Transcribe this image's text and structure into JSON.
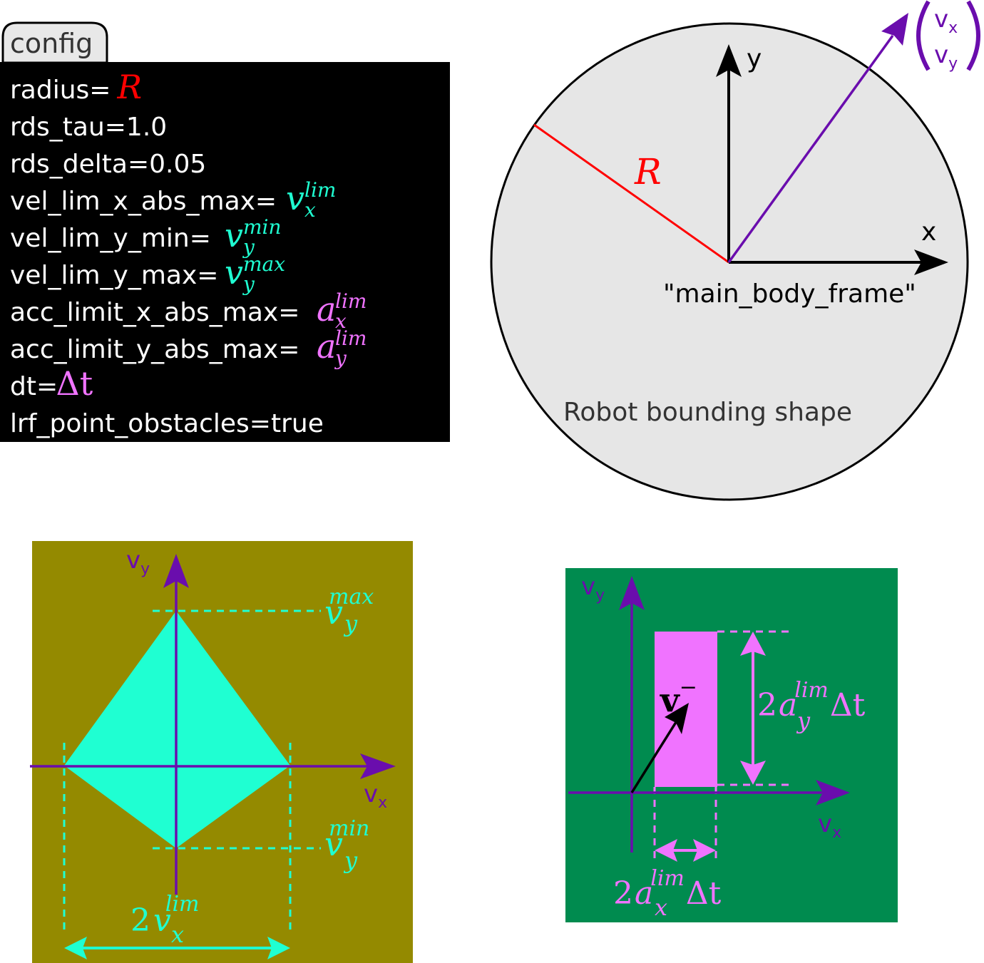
{
  "colors": {
    "config_bg": "#000000",
    "config_text": "#ffffff",
    "radius_red": "#ff0000",
    "cyan": "#1de9b6",
    "cyan_fill": "#1fffd2",
    "magenta": "#f073ff",
    "purple": "#6a0dad",
    "olive_bg": "#948a00",
    "green_bg": "#008b4f",
    "circle_fill": "#e6e6e6"
  },
  "config": {
    "tab_label": "config",
    "lines": [
      {
        "key": "radius=",
        "sym": "R",
        "sub": "",
        "sup": "",
        "color": "red"
      },
      {
        "key": "rds_tau=1.0",
        "sym": "",
        "sub": "",
        "sup": "",
        "color": ""
      },
      {
        "key": "rds_delta=0.05",
        "sym": "",
        "sub": "",
        "sup": "",
        "color": ""
      },
      {
        "key": "vel_lim_x_abs_max=",
        "sym": "v",
        "sub": "x",
        "sup": "lim",
        "color": "cyan"
      },
      {
        "key": "vel_lim_y_min=",
        "sym": "v",
        "sub": "y",
        "sup": "min",
        "color": "cyan"
      },
      {
        "key": "vel_lim_y_max=",
        "sym": "v",
        "sub": "y",
        "sup": "max",
        "color": "cyan"
      },
      {
        "key": "acc_limit_x_abs_max=",
        "sym": "a",
        "sub": "x",
        "sup": "lim",
        "color": "magenta"
      },
      {
        "key": "acc_limit_y_abs_max=",
        "sym": "a",
        "sub": "y",
        "sup": "lim",
        "color": "magenta"
      },
      {
        "key": "dt=",
        "sym": "Δt",
        "sub": "",
        "sup": "",
        "color": "magenta"
      },
      {
        "key": "lrf_point_obstacles=true",
        "sym": "",
        "sub": "",
        "sup": "",
        "color": ""
      }
    ]
  },
  "robot": {
    "x_label": "x",
    "y_label": "y",
    "radius_label": "R",
    "frame_label": "\"main_body_frame\"",
    "shape_label": "Robot bounding shape",
    "vel_vx": "v",
    "vel_vx_sub": "x",
    "vel_vy": "v",
    "vel_vy_sub": "y"
  },
  "velocity_panel": {
    "axis_vx": "v",
    "axis_vx_sub": "x",
    "axis_vy": "v",
    "axis_vy_sub": "y",
    "vmax_sym": "v",
    "vmax_sub": "y",
    "vmax_sup": "max",
    "vmin_sym": "v",
    "vmin_sub": "y",
    "vmin_sup": "min",
    "width_coef": "2",
    "width_sym": "v",
    "width_sub": "x",
    "width_sup": "lim"
  },
  "accel_panel": {
    "axis_vx": "v",
    "axis_vx_sub": "x",
    "axis_vy": "v",
    "axis_vy_sub": "y",
    "vminus": "v",
    "vminus_sup": "−",
    "height_coef": "2",
    "height_sym": "a",
    "height_sub": "y",
    "height_sup": "lim",
    "height_dt": "Δt",
    "width_coef": "2",
    "width_sym": "a",
    "width_sub": "x",
    "width_sup": "lim",
    "width_dt": "Δt"
  }
}
